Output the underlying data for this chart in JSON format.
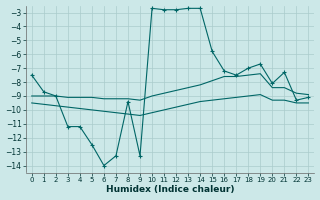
{
  "xlabel": "Humidex (Indice chaleur)",
  "background_color": "#cce8e8",
  "grid_color": "#aacccc",
  "line_color": "#006666",
  "xlim": [
    -0.5,
    23.5
  ],
  "ylim": [
    -14.5,
    -2.5
  ],
  "xticks": [
    0,
    1,
    2,
    3,
    4,
    5,
    6,
    7,
    8,
    9,
    10,
    11,
    12,
    13,
    14,
    15,
    16,
    17,
    18,
    19,
    20,
    21,
    22,
    23
  ],
  "yticks": [
    -3,
    -4,
    -5,
    -6,
    -7,
    -8,
    -9,
    -10,
    -11,
    -12,
    -13,
    -14
  ],
  "line1_x": [
    0,
    1,
    2,
    3,
    4,
    5,
    6,
    7,
    8,
    9,
    10,
    11,
    12,
    13,
    14,
    15,
    16,
    17,
    18,
    19,
    20,
    21,
    22,
    23
  ],
  "line1_y": [
    -7.5,
    -8.7,
    -9.0,
    -11.2,
    -11.2,
    -12.5,
    -14.0,
    -13.3,
    -9.4,
    -13.3,
    -2.7,
    -2.8,
    -2.8,
    -2.7,
    -2.7,
    -5.8,
    -7.2,
    -7.5,
    -7.0,
    -6.7,
    -8.1,
    -7.3,
    -9.3,
    -9.1
  ],
  "line2_x": [
    0,
    1,
    2,
    3,
    4,
    5,
    6,
    7,
    8,
    9,
    10,
    11,
    12,
    13,
    14,
    15,
    16,
    17,
    18,
    19,
    20,
    21,
    22,
    23
  ],
  "line2_y": [
    -9.0,
    -9.0,
    -9.0,
    -9.1,
    -9.1,
    -9.1,
    -9.2,
    -9.2,
    -9.2,
    -9.3,
    -9.0,
    -8.8,
    -8.6,
    -8.4,
    -8.2,
    -7.9,
    -7.6,
    -7.6,
    -7.5,
    -7.4,
    -8.4,
    -8.4,
    -8.8,
    -8.9
  ],
  "line3_x": [
    0,
    1,
    2,
    3,
    4,
    5,
    6,
    7,
    8,
    9,
    10,
    11,
    12,
    13,
    14,
    15,
    16,
    17,
    18,
    19,
    20,
    21,
    22,
    23
  ],
  "line3_y": [
    -9.5,
    -9.6,
    -9.7,
    -9.8,
    -9.9,
    -10.0,
    -10.1,
    -10.2,
    -10.3,
    -10.4,
    -10.2,
    -10.0,
    -9.8,
    -9.6,
    -9.4,
    -9.3,
    -9.2,
    -9.1,
    -9.0,
    -8.9,
    -9.3,
    -9.3,
    -9.5,
    -9.5
  ]
}
